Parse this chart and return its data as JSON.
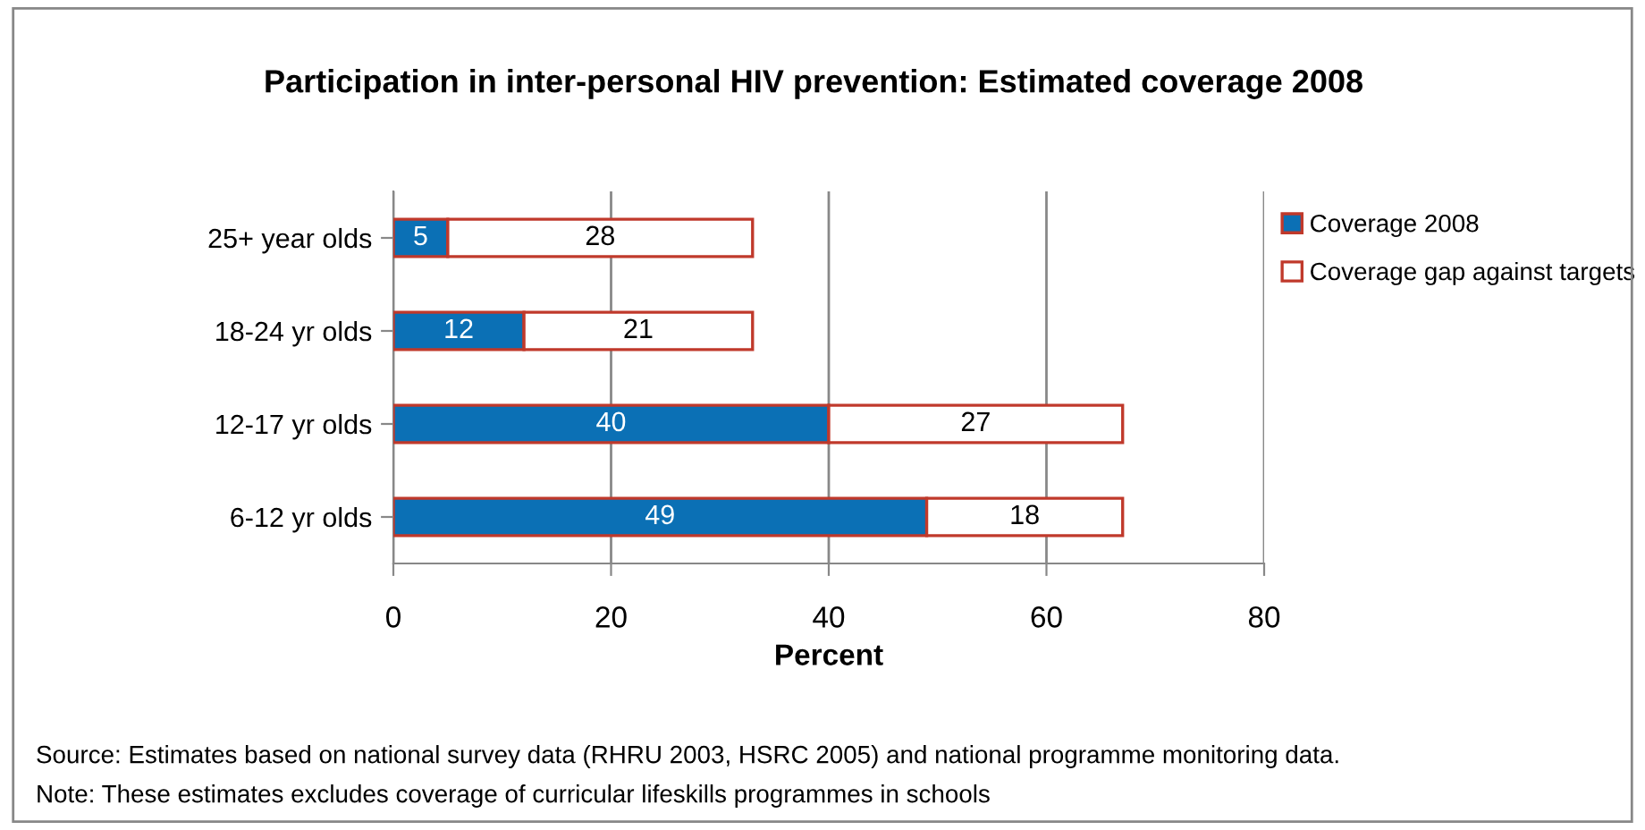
{
  "chart_data": {
    "type": "bar",
    "orientation": "horizontal",
    "stacked": true,
    "title": "Participation in inter-personal HIV prevention: Estimated coverage 2008",
    "xlabel": "Percent",
    "categories": [
      "25+ year olds",
      "18-24 yr olds",
      "12-17 yr olds",
      "6-12 yr olds"
    ],
    "series": [
      {
        "name": "Coverage 2008",
        "color": "#0b70b5",
        "values": [
          5,
          12,
          40,
          49
        ]
      },
      {
        "name": "Coverage gap against targets",
        "color": "#ffffff",
        "values": [
          28,
          21,
          27,
          18
        ]
      }
    ],
    "xlim": [
      0,
      80
    ],
    "xticks": [
      0,
      20,
      40,
      60,
      80
    ],
    "grid": "x",
    "legend": "right",
    "data_labels": true,
    "annotations": [
      "Source: Estimates based on national survey data (RHRU 2003, HSRC 2005) and national programme monitoring data.",
      "Note: These estimates excludes coverage of curricular lifeskills programmes in schools"
    ]
  }
}
